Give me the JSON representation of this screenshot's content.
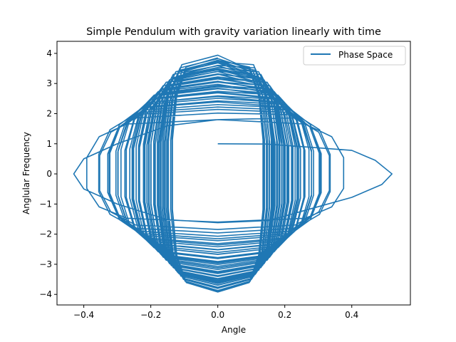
{
  "chart_data": {
    "type": "line",
    "title": "Simple Pendulum with gravity variation linearly with time",
    "xlabel": "Angle",
    "ylabel": "Anglular Frequency",
    "xlim": [
      -0.48,
      0.575
    ],
    "ylim": [
      -4.35,
      4.4
    ],
    "xticks": [
      -0.4,
      -0.2,
      0.0,
      0.2,
      0.4
    ],
    "xtick_labels": [
      "−0.4",
      "−0.2",
      "0.0",
      "0.2",
      "0.4"
    ],
    "yticks": [
      -4,
      -3,
      -2,
      -1,
      0,
      1,
      2,
      3,
      4
    ],
    "ytick_labels": [
      "−4",
      "−3",
      "−2",
      "−1",
      "0",
      "1",
      "2",
      "3",
      "4"
    ],
    "grid": false,
    "legend_position": "top-right",
    "series": [
      {
        "name": "Phase Space",
        "color": "#1f77b4",
        "start": {
          "angle": 0.0,
          "angular_frequency": 1.0
        },
        "initial_excursion": {
          "angle": 0.52,
          "angular_frequency": 0.0
        },
        "angle_amplitude_range": [
          0.15,
          0.52
        ],
        "angular_frequency_amplitude_range": [
          1.6,
          4.0
        ],
        "description_points": [
          {
            "angle": 0.0,
            "angular_frequency": 1.0
          },
          {
            "angle": 0.15,
            "angular_frequency": 1.0
          },
          {
            "angle": 0.4,
            "angular_frequency": 0.8
          },
          {
            "angle": 0.52,
            "angular_frequency": 0.0
          },
          {
            "angle": 0.4,
            "angular_frequency": -0.9
          },
          {
            "angle": 0.15,
            "angular_frequency": -1.6
          },
          {
            "angle": 0.0,
            "angular_frequency": -1.6
          },
          {
            "angle": -0.15,
            "angular_frequency": -1.5
          },
          {
            "angle": -0.35,
            "angular_frequency": -0.8
          },
          {
            "angle": -0.43,
            "angular_frequency": 0.0
          },
          {
            "angle": -0.35,
            "angular_frequency": 0.8
          },
          {
            "angle": -0.15,
            "angular_frequency": 1.6
          },
          {
            "angle": 0.0,
            "angular_frequency": 1.8
          }
        ]
      }
    ]
  }
}
